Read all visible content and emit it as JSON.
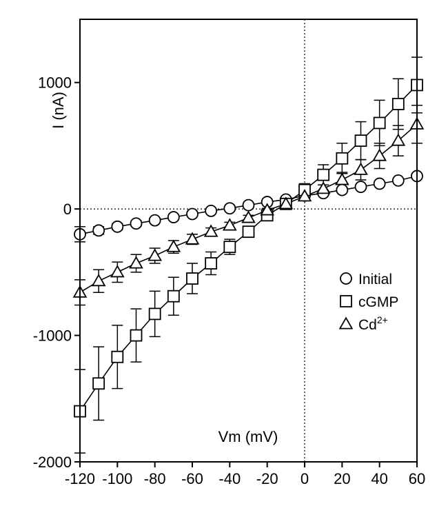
{
  "chart_data": {
    "type": "line",
    "xlabel": "Vm (mV)",
    "ylabel": "I (nA)",
    "xlim": [
      -120,
      60
    ],
    "ylim": [
      -2000,
      1500
    ],
    "xticks": [
      -120,
      -100,
      -80,
      -60,
      -40,
      -20,
      0,
      20,
      40,
      60
    ],
    "yticks": [
      -2000,
      -1000,
      0,
      1000
    ],
    "x": [
      -120,
      -110,
      -100,
      -90,
      -80,
      -70,
      -60,
      -50,
      -40,
      -30,
      -20,
      -10,
      0,
      10,
      20,
      30,
      40,
      50,
      60
    ],
    "reference_lines": {
      "x": 0,
      "y": 0,
      "style": "dotted"
    },
    "legend_position": "right",
    "series": [
      {
        "name": "Initial",
        "marker": "circle",
        "values": [
          -200,
          -170,
          -140,
          -115,
          -90,
          -65,
          -40,
          -15,
          5,
          30,
          55,
          75,
          105,
          125,
          150,
          175,
          200,
          225,
          260
        ],
        "errors": [
          60,
          30,
          25,
          20,
          18,
          15,
          12,
          10,
          10,
          10,
          10,
          10,
          15,
          15,
          15,
          15,
          15,
          15,
          20
        ]
      },
      {
        "name": "cGMP",
        "marker": "square",
        "values": [
          -1600,
          -1380,
          -1170,
          -1000,
          -830,
          -690,
          -550,
          -430,
          -300,
          -180,
          -50,
          40,
          150,
          270,
          400,
          540,
          680,
          830,
          980
        ],
        "errors": [
          330,
          290,
          250,
          210,
          180,
          150,
          120,
          90,
          60,
          40,
          25,
          20,
          50,
          80,
          120,
          150,
          180,
          200,
          220
        ]
      },
      {
        "name": "Cd",
        "name_superscript": "2+",
        "marker": "triangle",
        "values": [
          -660,
          -570,
          -500,
          -430,
          -370,
          -300,
          -240,
          -180,
          -130,
          -70,
          -10,
          40,
          100,
          160,
          230,
          310,
          420,
          540,
          670
        ],
        "errors": [
          100,
          90,
          80,
          70,
          60,
          50,
          40,
          30,
          25,
          20,
          15,
          15,
          15,
          30,
          60,
          80,
          100,
          120,
          150
        ]
      }
    ]
  }
}
